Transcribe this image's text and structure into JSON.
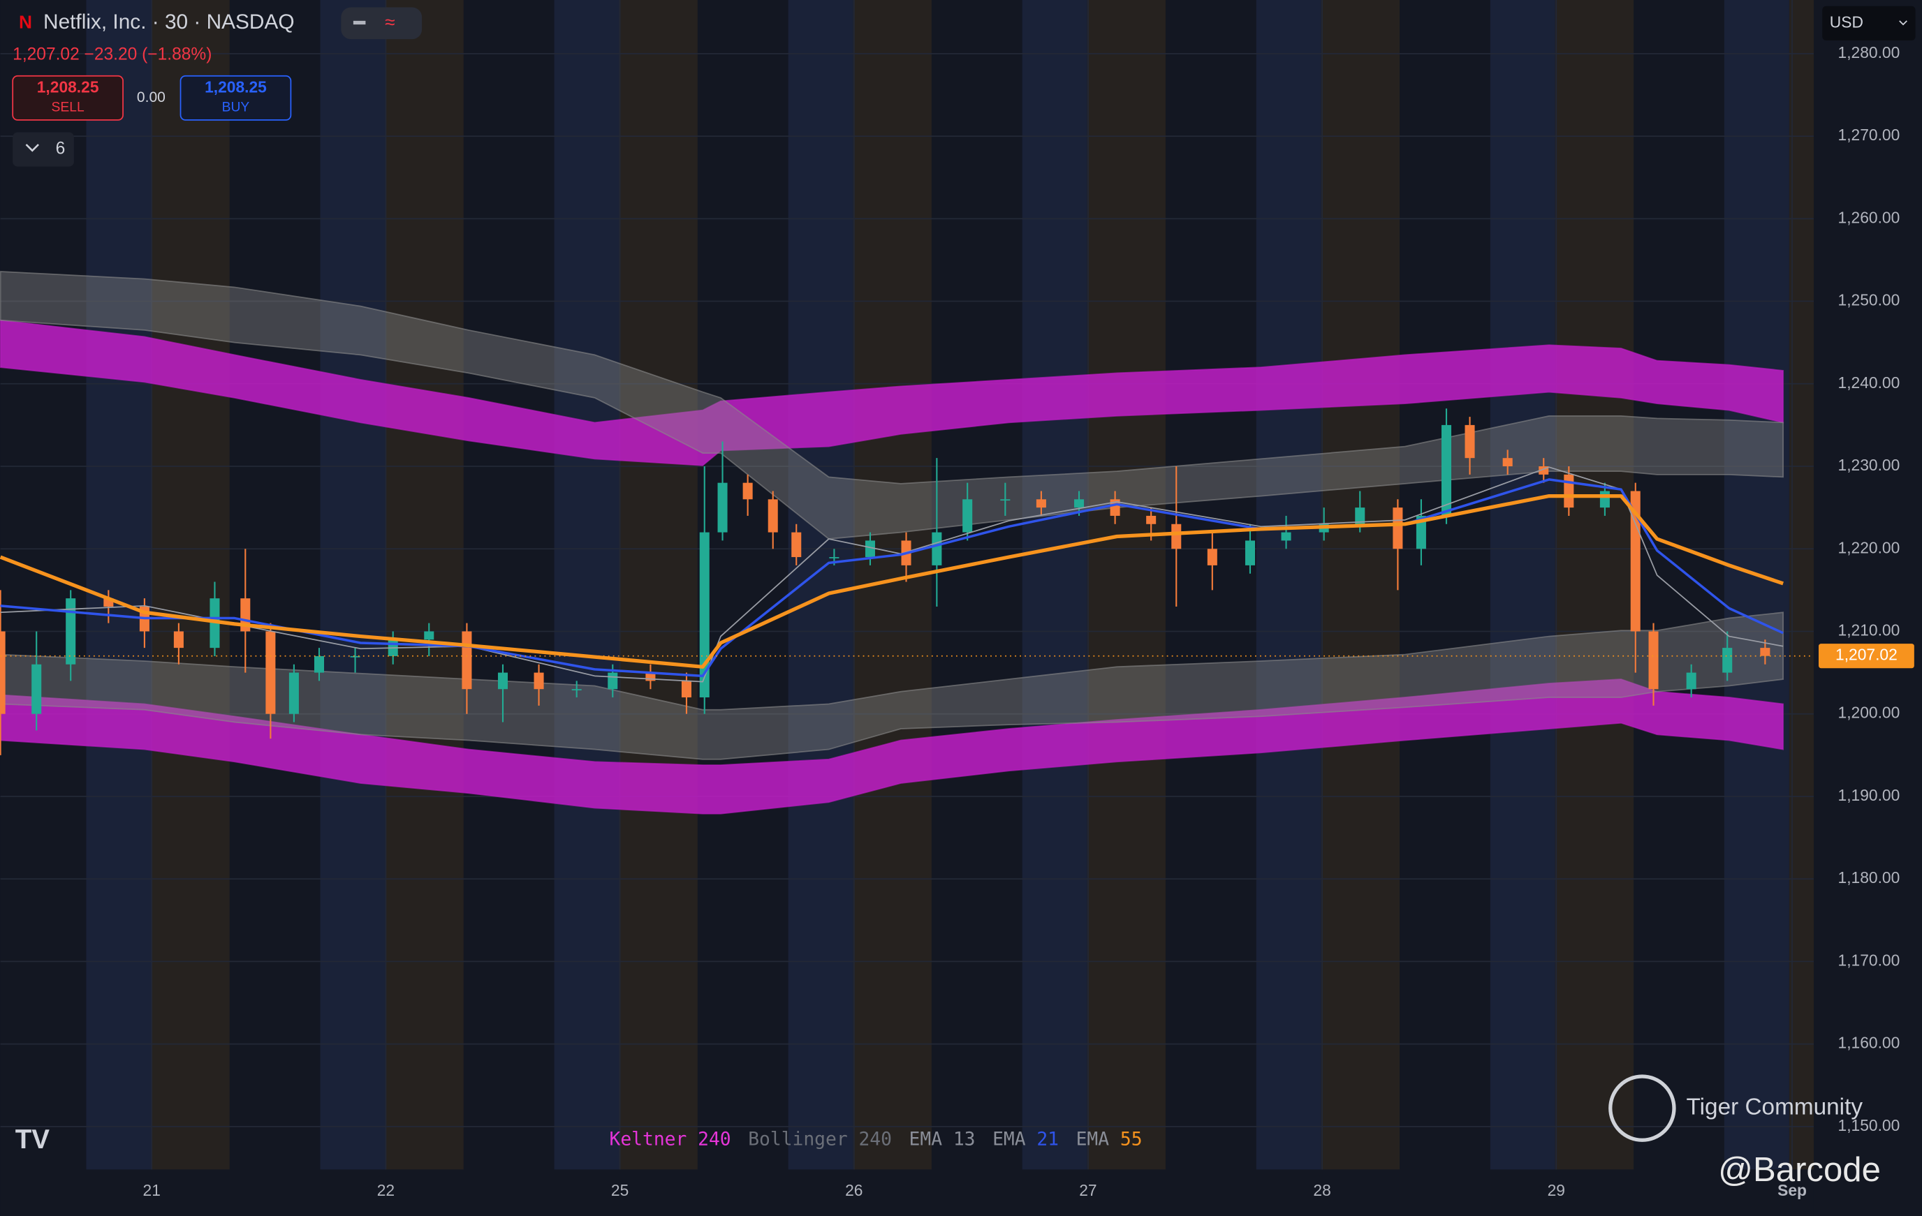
{
  "header": {
    "logo": "N",
    "title": "Netflix, Inc. · 30 · NASDAQ",
    "quote": "1,207.02 −23.20 (−1.88%)",
    "currency": "USD",
    "indicators_count": "6"
  },
  "trade": {
    "sell_price": "1,208.25",
    "sell_label": "SELL",
    "spread": "0.00",
    "buy_price": "1,208.25",
    "buy_label": "BUY"
  },
  "legend": [
    {
      "name": "Keltner",
      "param": "240",
      "name_color": "#e535d8",
      "param_color": "#e535d8"
    },
    {
      "name": "Bollinger",
      "param": "240",
      "name_color": "#6b6f78",
      "param_color": "#6b6f78"
    },
    {
      "name": "EMA",
      "param": "13",
      "name_color": "#8a8e98",
      "param_color": "#8a8e98"
    },
    {
      "name": "EMA",
      "param": "21",
      "name_color": "#8a8e98",
      "param_color": "#2f54eb"
    },
    {
      "name": "EMA",
      "param": "55",
      "name_color": "#8a8e98",
      "param_color": "#f7931e"
    }
  ],
  "watermark": {
    "brand": "Tiger Community",
    "handle": "@Barcode"
  },
  "chart_data": {
    "type": "candlestick",
    "xlim": [
      0,
      100.7
    ],
    "ylim": [
      1144.8,
      1286.5
    ],
    "xticks": [
      {
        "value": 8.4,
        "label": "21"
      },
      {
        "value": 21.4,
        "label": "22"
      },
      {
        "value": 34.4,
        "label": "25"
      },
      {
        "value": 47.4,
        "label": "26"
      },
      {
        "value": 60.4,
        "label": "27"
      },
      {
        "value": 73.4,
        "label": "28"
      },
      {
        "value": 86.4,
        "label": "29"
      },
      {
        "value": 99.5,
        "label": "Sep"
      }
    ],
    "yticks": [
      {
        "value": 1150,
        "label": "1,150.00"
      },
      {
        "value": 1160,
        "label": "1,160.00"
      },
      {
        "value": 1170,
        "label": "1,170.00"
      },
      {
        "value": 1180,
        "label": "1,180.00"
      },
      {
        "value": 1190,
        "label": "1,190.00"
      },
      {
        "value": 1200,
        "label": "1,200.00"
      },
      {
        "value": 1210,
        "label": "1,210.00"
      },
      {
        "value": 1220,
        "label": "1,220.00"
      },
      {
        "value": 1230,
        "label": "1,230.00"
      },
      {
        "value": 1240,
        "label": "1,240.00"
      },
      {
        "value": 1250,
        "label": "1,250.00"
      },
      {
        "value": 1260,
        "label": "1,260.00"
      },
      {
        "value": 1270,
        "label": "1,270.00"
      },
      {
        "value": 1280,
        "label": "1,280.00"
      }
    ],
    "grid": true,
    "last_price": {
      "value": 1207.02,
      "label": "1,207.02"
    },
    "last_price_color": "#f7931e",
    "up_color": "#22ab94",
    "down_color": "#f57c3a",
    "candles": {
      "x": [
        0,
        2,
        3.9,
        6,
        8,
        9.9,
        11.9,
        13.6,
        15,
        16.3,
        17.7,
        19.7,
        21.8,
        23.8,
        25.9,
        27.9,
        29.9,
        32,
        34,
        36.1,
        38.1,
        39.1,
        40.1,
        41.5,
        42.9,
        44.2,
        46.3,
        48.3,
        50.3,
        52,
        53.7,
        55.8,
        57.8,
        59.9,
        61.9,
        63.9,
        65.3,
        67.3,
        69.4,
        71.4,
        73.5,
        75.5,
        77.6,
        78.9,
        80.3,
        81.6,
        83.7,
        85.7,
        87.1,
        89.1,
        90.8,
        91.8,
        93.9,
        95.9,
        98
      ],
      "open": [
        1210,
        1200,
        1206,
        1214,
        1213,
        1210,
        1208,
        1214,
        1210,
        1200,
        1205,
        1207,
        1207,
        1209,
        1210,
        1203,
        1205,
        1203,
        1203,
        1205,
        1204,
        1202,
        1222,
        1228,
        1226,
        1222,
        1219,
        1219,
        1221,
        1218,
        1222,
        1226,
        1226,
        1225,
        1226,
        1224,
        1223,
        1220,
        1218,
        1221,
        1222,
        1223,
        1225,
        1220,
        1224,
        1235,
        1231,
        1230,
        1229,
        1225,
        1227,
        1210,
        1203,
        1205,
        1208
      ],
      "high": [
        1215,
        1210,
        1215,
        1215,
        1214,
        1211,
        1216,
        1220,
        1211,
        1206,
        1208,
        1208,
        1210,
        1211,
        1211,
        1206,
        1206,
        1204,
        1206,
        1206,
        1205,
        1230,
        1233,
        1229,
        1227,
        1223,
        1220,
        1222,
        1222,
        1231,
        1228,
        1228,
        1227,
        1227,
        1227,
        1225,
        1230,
        1222,
        1223,
        1224,
        1225,
        1227,
        1226,
        1226,
        1237,
        1236,
        1232,
        1231,
        1230,
        1228,
        1228,
        1211,
        1206,
        1210,
        1209
      ],
      "low": [
        1195,
        1198,
        1204,
        1211,
        1208,
        1206,
        1207,
        1205,
        1197,
        1199,
        1204,
        1205,
        1206,
        1207,
        1200,
        1199,
        1201,
        1202,
        1202,
        1203,
        1200,
        1200,
        1221,
        1224,
        1220,
        1218,
        1218,
        1218,
        1216,
        1213,
        1221,
        1224,
        1224,
        1224,
        1223,
        1221,
        1213,
        1215,
        1217,
        1220,
        1221,
        1222,
        1215,
        1218,
        1223,
        1229,
        1229,
        1228,
        1224,
        1224,
        1205,
        1201,
        1202,
        1204,
        1206
      ],
      "close": [
        1200,
        1206,
        1214,
        1213,
        1210,
        1208,
        1214,
        1210,
        1200,
        1205,
        1207,
        1207,
        1209,
        1210,
        1203,
        1205,
        1203,
        1203,
        1205,
        1204,
        1202,
        1222,
        1228,
        1226,
        1222,
        1219,
        1219,
        1221,
        1218,
        1222,
        1226,
        1226,
        1225,
        1226,
        1224,
        1223,
        1220,
        1218,
        1221,
        1222,
        1223,
        1225,
        1220,
        1224,
        1235,
        1231,
        1230,
        1229,
        1225,
        1227,
        1210,
        1203,
        1205,
        1208,
        1207.02
      ]
    },
    "line_x": [
      0,
      8,
      13,
      20,
      26,
      33,
      39,
      40,
      46,
      50,
      56,
      62,
      70,
      78,
      86,
      90,
      92,
      96,
      99
    ],
    "bands": [
      {
        "color": "#c21ec8",
        "opacity": 0.85,
        "upper": [
          1247.7,
          1245.7,
          1243.5,
          1240.5,
          1238.3,
          1235.3,
          1236.8,
          1237.9,
          1239.0,
          1239.7,
          1240.5,
          1241.3,
          1242.0,
          1243.5,
          1244.7,
          1244.3,
          1242.8,
          1242.3,
          1241.6
        ],
        "lower": [
          1242.0,
          1240.2,
          1238.3,
          1235.3,
          1233.1,
          1230.9,
          1230.1,
          1231.9,
          1232.4,
          1233.9,
          1235.3,
          1236.1,
          1236.8,
          1237.6,
          1239.0,
          1238.3,
          1237.6,
          1236.8,
          1235.3
        ]
      },
      {
        "color": "#c21ec8",
        "opacity": 0.85,
        "upper": [
          1202.3,
          1201.2,
          1199.7,
          1197.5,
          1195.7,
          1194.2,
          1193.8,
          1193.8,
          1194.5,
          1196.8,
          1198.2,
          1199.3,
          1200.5,
          1202.0,
          1203.7,
          1204.2,
          1202.7,
          1202.0,
          1201.2
        ],
        "lower": [
          1196.8,
          1195.7,
          1194.2,
          1191.6,
          1190.4,
          1188.6,
          1187.9,
          1187.9,
          1189.3,
          1191.6,
          1193.1,
          1194.2,
          1195.3,
          1196.8,
          1198.2,
          1198.9,
          1197.5,
          1196.8,
          1195.7
        ]
      },
      {
        "color": "#8a8a8a",
        "opacity": 0.4,
        "upper": [
          1253.6,
          1252.7,
          1251.7,
          1249.4,
          1246.5,
          1243.5,
          1239.0,
          1238.3,
          1228.7,
          1227.9,
          1228.7,
          1229.4,
          1230.9,
          1232.4,
          1236.1,
          1236.1,
          1235.8,
          1235.6,
          1235.3
        ],
        "lower": [
          1247.7,
          1246.5,
          1245.0,
          1243.5,
          1241.3,
          1238.3,
          1231.6,
          1231.6,
          1221.2,
          1222.0,
          1223.5,
          1225.0,
          1226.4,
          1227.9,
          1229.4,
          1229.4,
          1229.0,
          1229.0,
          1228.7
        ]
      },
      {
        "color": "#8a8a8a",
        "opacity": 0.4,
        "upper": [
          1207.2,
          1206.4,
          1205.7,
          1204.9,
          1204.2,
          1203.4,
          1200.5,
          1200.5,
          1201.2,
          1202.7,
          1204.2,
          1205.7,
          1206.4,
          1207.2,
          1209.4,
          1210.1,
          1210.1,
          1211.6,
          1212.3
        ],
        "lower": [
          1201.2,
          1200.5,
          1199.0,
          1197.5,
          1196.8,
          1195.7,
          1194.5,
          1194.5,
          1195.7,
          1198.2,
          1198.7,
          1199.0,
          1199.7,
          1200.8,
          1202.0,
          1202.0,
          1202.7,
          1203.4,
          1204.2
        ]
      }
    ],
    "series": [
      {
        "color": "#9a9da5",
        "width": 1,
        "values": [
          1212.3,
          1213.1,
          1210.9,
          1207.9,
          1208.2,
          1204.6,
          1203.9,
          1209.4,
          1221.2,
          1219.4,
          1223.4,
          1225.7,
          1222.7,
          1223.5,
          1229.9,
          1227.2,
          1216.8,
          1209.4,
          1208.2
        ]
      },
      {
        "color": "#2f54eb",
        "width": 2,
        "values": [
          1213.1,
          1211.6,
          1211.6,
          1208.6,
          1208.2,
          1205.4,
          1204.6,
          1207.9,
          1218.3,
          1219.3,
          1222.7,
          1225.4,
          1222.4,
          1223.0,
          1228.4,
          1227.2,
          1219.8,
          1212.8,
          1209.8
        ]
      },
      {
        "color": "#f7931e",
        "width": 3,
        "values": [
          1219.0,
          1212.3,
          1210.9,
          1209.4,
          1208.3,
          1206.9,
          1205.7,
          1208.6,
          1214.6,
          1216.4,
          1219.0,
          1221.5,
          1222.4,
          1223.0,
          1226.4,
          1226.4,
          1221.2,
          1218.0,
          1215.8
        ]
      }
    ]
  }
}
